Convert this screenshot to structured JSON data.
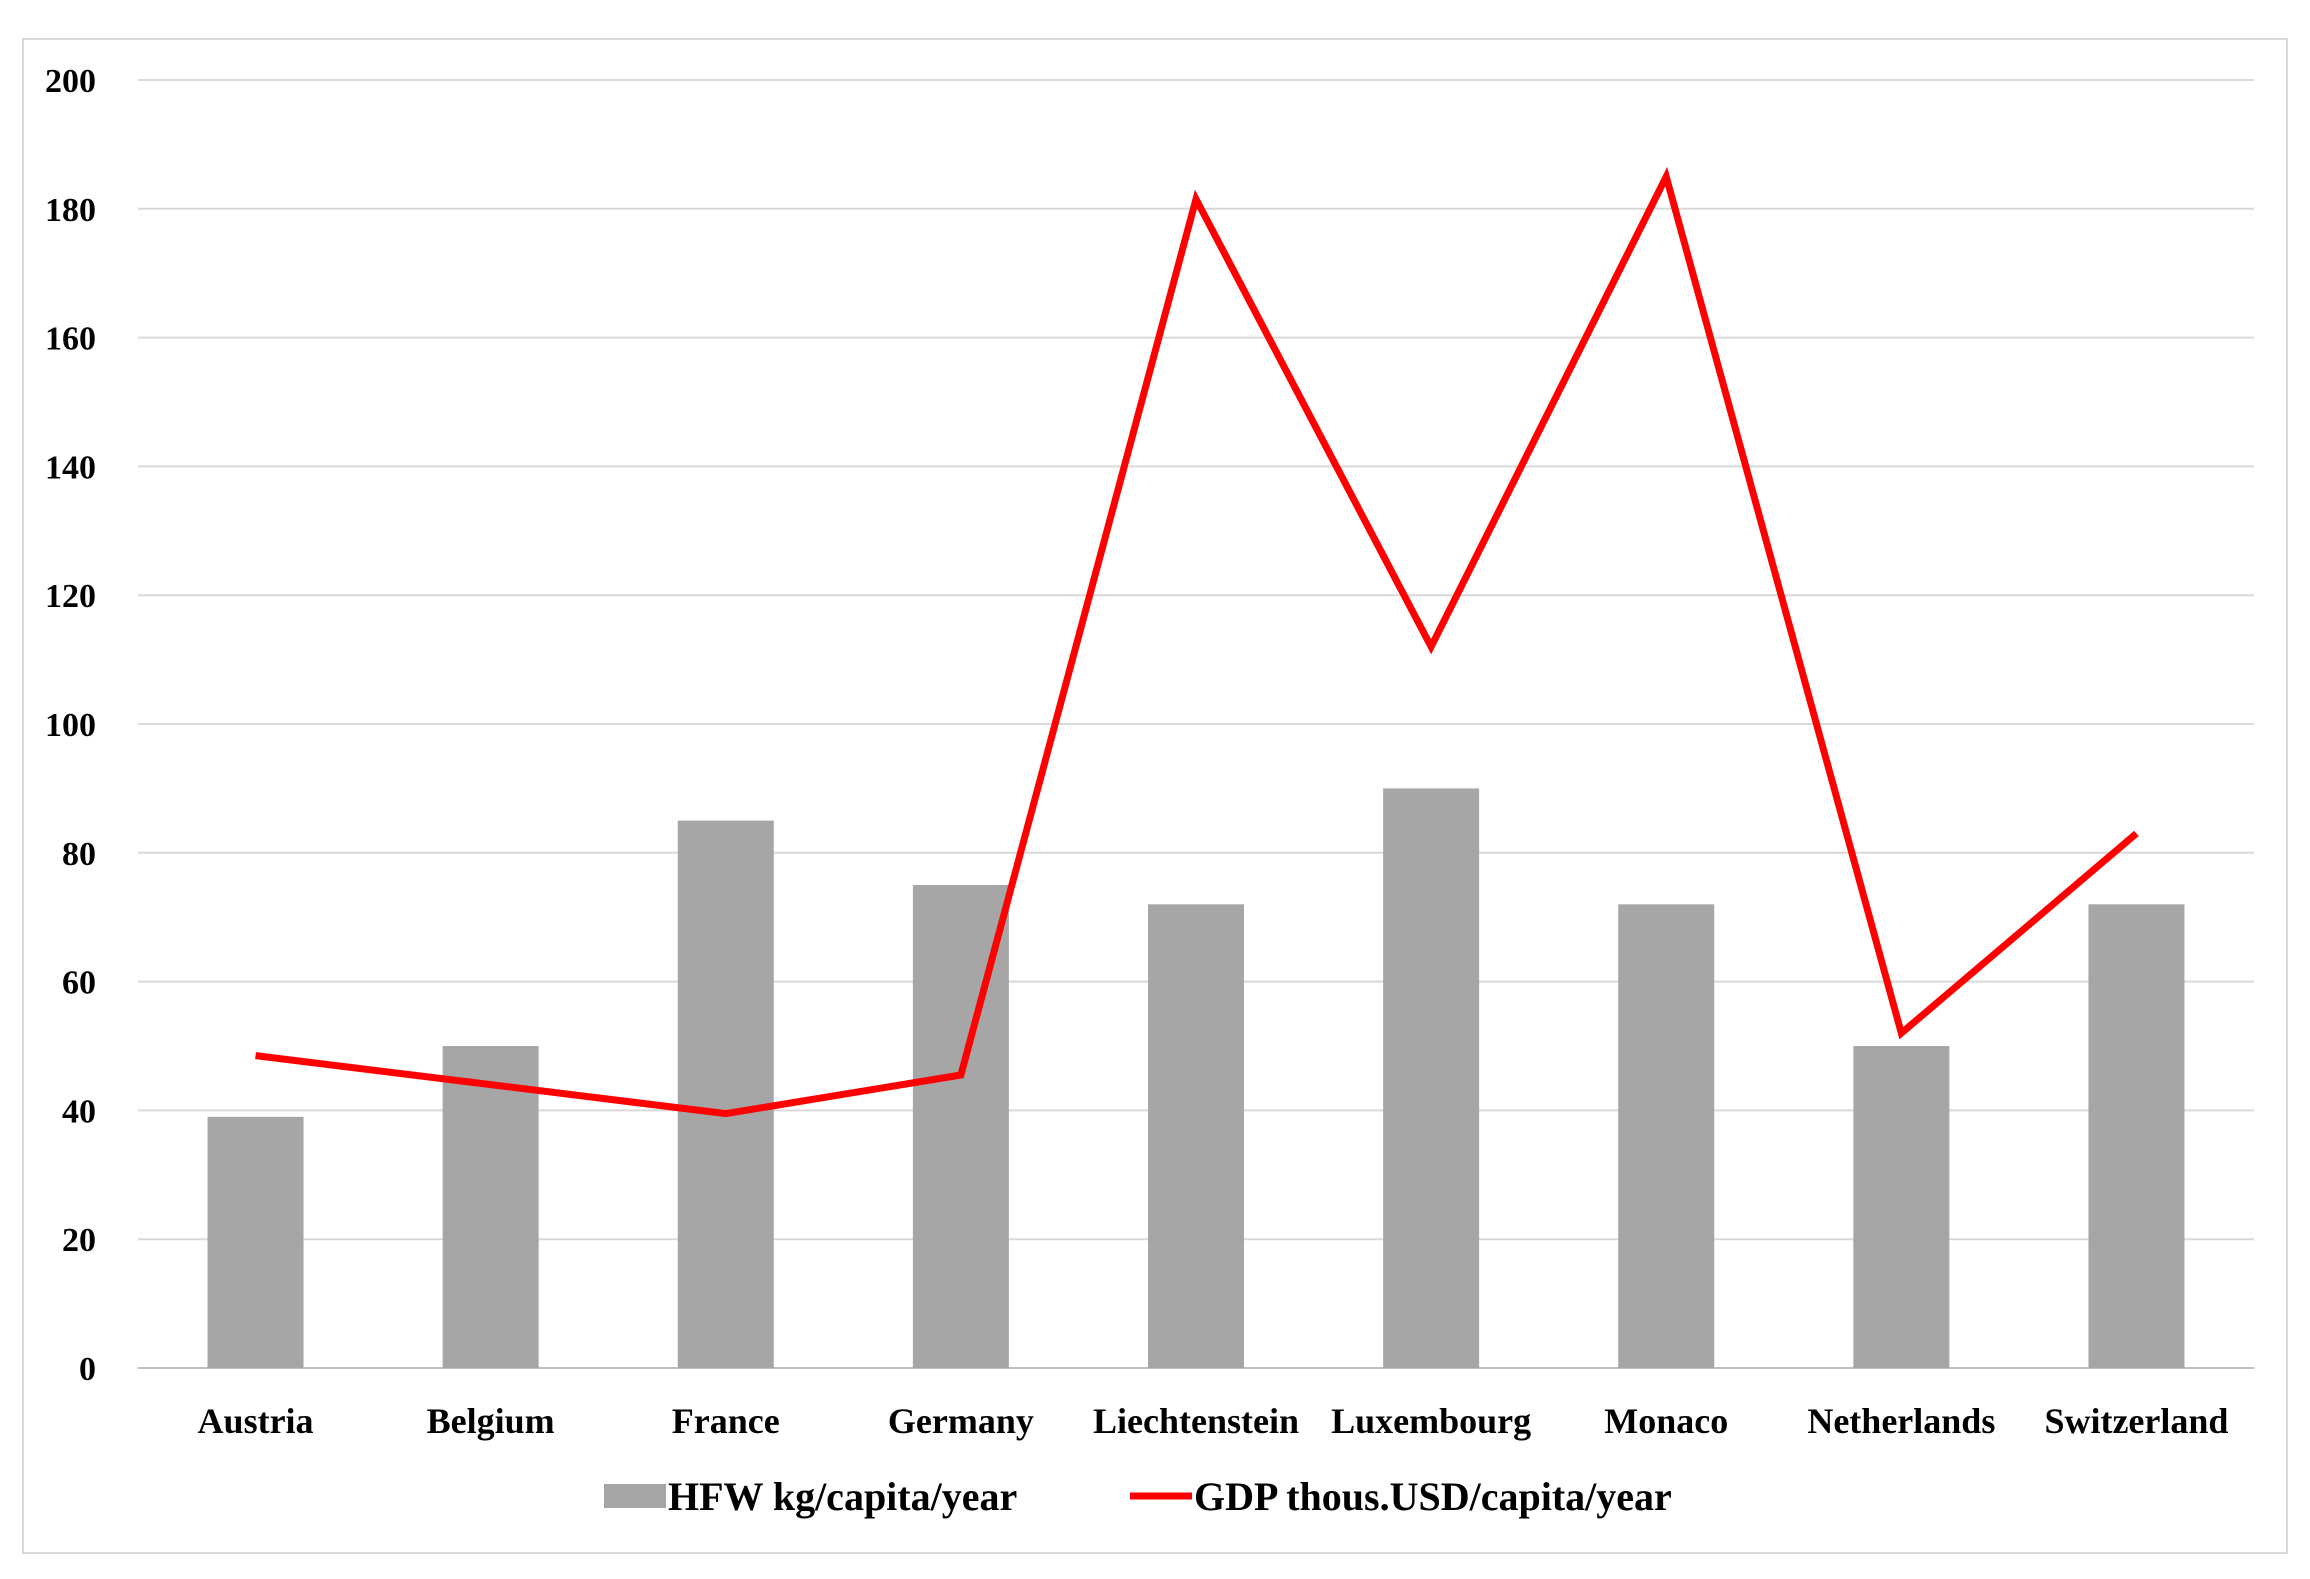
{
  "chart_data": {
    "type": "bar",
    "categories": [
      "Austria",
      "Belgium",
      "France",
      "Germany",
      "Liechtenstein",
      "Luxembourg",
      "Monaco",
      "Netherlands",
      "Switzerland"
    ],
    "series": [
      {
        "name": "HFW kg/capita/year",
        "type": "bar",
        "color": "#a6a6a6",
        "values": [
          39,
          50,
          85,
          75,
          72,
          90,
          72,
          50,
          72
        ]
      },
      {
        "name": "GDP thous.USD/capita/year",
        "type": "line",
        "color": "#ff0000",
        "values": [
          48.5,
          44,
          39.5,
          45.5,
          181.5,
          112,
          185,
          52,
          83
        ]
      }
    ],
    "ylim": [
      0,
      200
    ],
    "yticks": [
      0,
      20,
      40,
      60,
      80,
      100,
      120,
      140,
      160,
      180,
      200
    ],
    "grid": true,
    "legend": "bottom"
  }
}
